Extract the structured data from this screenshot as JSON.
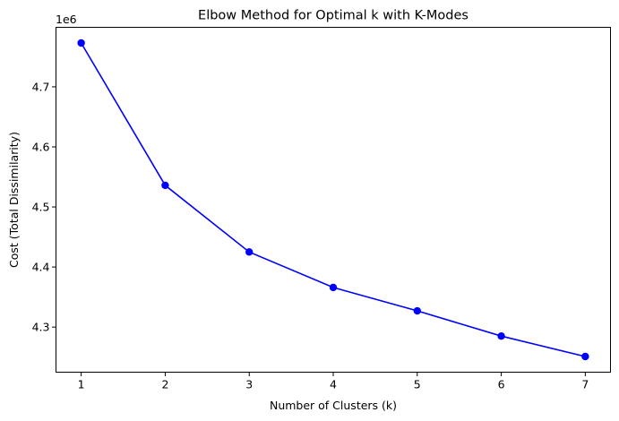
{
  "chart_data": {
    "type": "line",
    "title": "Elbow Method for Optimal k with K-Modes",
    "xlabel": "Number of Clusters (k)",
    "ylabel": "Cost (Total Dissimilarity)",
    "y_offset_label": "1e6",
    "x": [
      1,
      2,
      3,
      4,
      5,
      6,
      7
    ],
    "series": [
      {
        "values": [
          4773000,
          4536000,
          4425000,
          4366000,
          4327000,
          4285000,
          4251000
        ],
        "color": "#0000ff",
        "marker": "circle"
      }
    ],
    "xlim": [
      0.7,
      7.3
    ],
    "ylim": [
      4.2249,
      4.7991
    ],
    "x_ticks": [
      1,
      2,
      3,
      4,
      5,
      6,
      7
    ],
    "x_tick_labels": [
      "1",
      "2",
      "3",
      "4",
      "5",
      "6",
      "7"
    ],
    "y_ticks": [
      4.3,
      4.4,
      4.5,
      4.6,
      4.7
    ],
    "y_tick_labels": [
      "4.3",
      "4.4",
      "4.5",
      "4.6",
      "4.7"
    ],
    "grid": false,
    "legend": "none"
  }
}
